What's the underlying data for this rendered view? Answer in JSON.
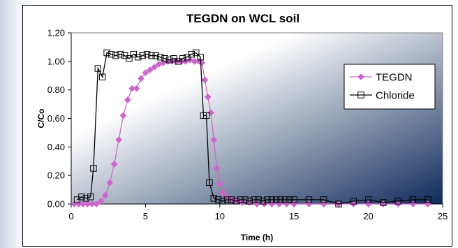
{
  "colors": {
    "tegdn": "#CC66CC",
    "chloride": "#000000",
    "plot_gradient_start": "#ffffff",
    "plot_gradient_end": "#0e2a5a"
  },
  "chart_data": {
    "type": "scatter",
    "title": "TEGDN on WCL soil",
    "xlabel": "Time (h)",
    "ylabel": "C/Co",
    "xlim": [
      0,
      25
    ],
    "ylim": [
      0,
      1.2
    ],
    "x_ticks": [
      0,
      5,
      10,
      15,
      20,
      25
    ],
    "y_ticks": [
      0.0,
      0.2,
      0.4,
      0.6,
      0.8,
      1.0,
      1.2
    ],
    "x_tick_labels": [
      "0",
      "5",
      "10",
      "15",
      "20",
      "25"
    ],
    "y_tick_labels": [
      "0.00",
      "0.20",
      "0.40",
      "0.60",
      "0.80",
      "1.00",
      "1.20"
    ],
    "grid": false,
    "legend_position": "right",
    "series": [
      {
        "name": "TEGDN",
        "marker": "diamond",
        "x": [
          0.2,
          0.5,
          0.8,
          1.1,
          1.4,
          1.7,
          2.0,
          2.3,
          2.6,
          2.9,
          3.2,
          3.5,
          3.8,
          4.1,
          4.4,
          4.7,
          5.0,
          5.3,
          5.6,
          5.9,
          6.2,
          6.5,
          6.8,
          7.1,
          7.4,
          7.7,
          8.0,
          8.3,
          8.6,
          8.8,
          9.0,
          9.2,
          9.4,
          9.6,
          9.8,
          10.0,
          10.2,
          10.5,
          10.8,
          11.1,
          11.5,
          12.0,
          12.5,
          13.0,
          13.5,
          14.0,
          14.5,
          15.0,
          16.0,
          17.0,
          18.0,
          19.0,
          20.0,
          21.0,
          22.0,
          23.0,
          24.0
        ],
        "y": [
          0.0,
          0.0,
          0.0,
          0.0,
          0.0,
          0.0,
          0.02,
          0.06,
          0.15,
          0.28,
          0.45,
          0.62,
          0.73,
          0.81,
          0.81,
          0.88,
          0.92,
          0.94,
          0.96,
          0.98,
          0.99,
          1.0,
          1.0,
          1.0,
          1.0,
          1.0,
          1.01,
          1.0,
          1.0,
          0.99,
          0.87,
          0.75,
          0.64,
          0.45,
          0.25,
          0.14,
          0.08,
          0.05,
          0.03,
          0.02,
          0.01,
          0.01,
          0.0,
          0.0,
          0.0,
          0.0,
          0.0,
          0.0,
          0.0,
          0.0,
          0.0,
          0.0,
          0.0,
          0.0,
          0.0,
          0.0,
          0.0
        ]
      },
      {
        "name": "Chloride",
        "marker": "square",
        "x": [
          0.4,
          0.7,
          1.0,
          1.3,
          1.5,
          1.8,
          2.1,
          2.4,
          2.7,
          3.0,
          3.3,
          3.6,
          3.9,
          4.2,
          4.5,
          4.8,
          5.1,
          5.4,
          5.7,
          6.0,
          6.3,
          6.6,
          6.9,
          7.2,
          7.5,
          7.8,
          8.1,
          8.4,
          8.7,
          8.9,
          9.1,
          9.3,
          9.6,
          9.9,
          10.2,
          10.5,
          10.8,
          11.1,
          11.4,
          11.7,
          12.0,
          12.3,
          12.6,
          12.9,
          13.2,
          13.5,
          13.8,
          14.1,
          14.4,
          14.7,
          15.0,
          16.0,
          17.0,
          18.0,
          19.0,
          20.0,
          21.0,
          22.0,
          23.0,
          24.0
        ],
        "y": [
          0.03,
          0.05,
          0.04,
          0.05,
          0.25,
          0.95,
          0.89,
          1.06,
          1.05,
          1.04,
          1.05,
          1.04,
          1.02,
          1.05,
          1.03,
          1.04,
          1.05,
          1.04,
          1.04,
          1.03,
          1.02,
          1.01,
          1.02,
          1.0,
          1.02,
          1.03,
          1.05,
          1.06,
          1.03,
          0.62,
          0.62,
          0.15,
          0.04,
          0.03,
          0.02,
          0.03,
          0.03,
          0.02,
          0.03,
          0.03,
          0.02,
          0.03,
          0.03,
          0.02,
          0.03,
          0.03,
          0.03,
          0.03,
          0.03,
          0.03,
          0.03,
          0.03,
          0.03,
          0.0,
          0.02,
          0.03,
          0.01,
          0.02,
          0.03,
          0.03
        ]
      }
    ]
  }
}
